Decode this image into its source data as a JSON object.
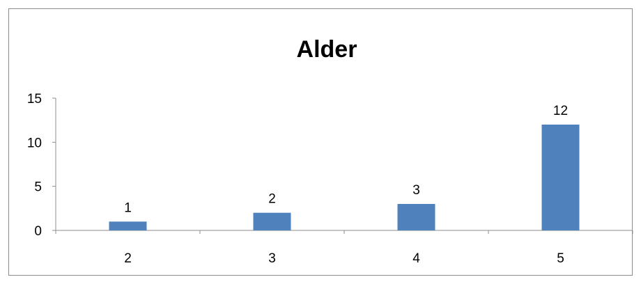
{
  "chart_data": {
    "type": "bar",
    "title": "Alder",
    "xlabel": "",
    "ylabel": "",
    "categories": [
      "2",
      "3",
      "4",
      "5"
    ],
    "series": [
      {
        "values": [
          1,
          2,
          3,
          12
        ]
      }
    ],
    "ylim": [
      0,
      15
    ],
    "yticks": [
      "0",
      "5",
      "10",
      "15"
    ],
    "data_labels": [
      "1",
      "2",
      "3",
      "12"
    ],
    "grid": false,
    "legend": "none",
    "colors": {
      "bar": "#4f81bd",
      "axis": "#8c8c8c",
      "text": "#000000"
    }
  }
}
